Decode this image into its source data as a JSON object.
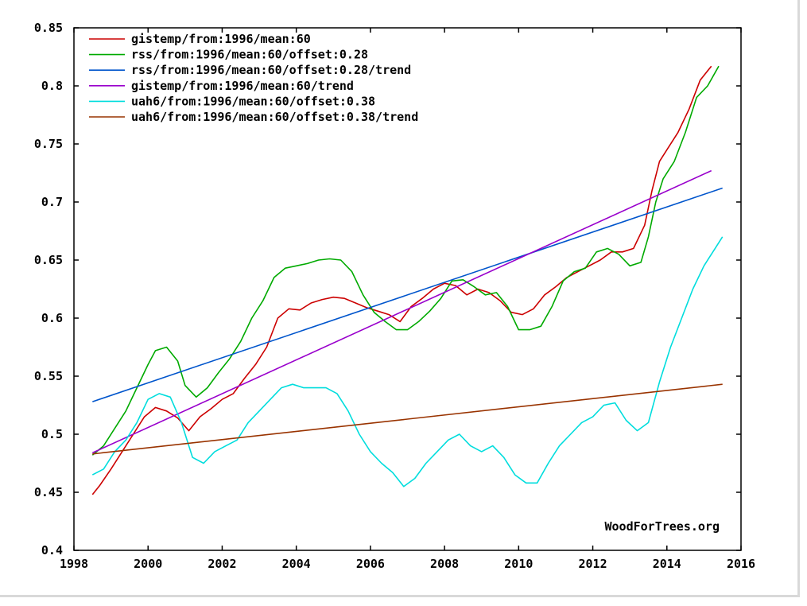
{
  "chart_data": {
    "type": "line",
    "title": "",
    "xlabel": "",
    "ylabel": "",
    "xlim": [
      1998,
      2016
    ],
    "ylim": [
      0.4,
      0.85
    ],
    "x_ticks": [
      "1998",
      "2000",
      "2002",
      "2004",
      "2006",
      "2008",
      "2010",
      "2012",
      "2014",
      "2016"
    ],
    "y_ticks": [
      "0.4",
      "0.45",
      "0.5",
      "0.55",
      "0.6",
      "0.65",
      "0.7",
      "0.75",
      "0.8",
      "0.85"
    ],
    "grid": false,
    "legend_position": "top-left",
    "watermark": "WoodForTrees.org",
    "series": [
      {
        "name": "gistemp/from:1996/mean:60",
        "color": "#cc0000",
        "x": [
          1998.5,
          1998.7,
          1999.0,
          1999.3,
          1999.6,
          1999.9,
          2000.2,
          2000.5,
          2000.8,
          2001.1,
          2001.4,
          2001.7,
          2002.0,
          2002.3,
          2002.6,
          2002.9,
          2003.2,
          2003.5,
          2003.8,
          2004.1,
          2004.4,
          2004.7,
          2005.0,
          2005.3,
          2005.6,
          2005.9,
          2006.2,
          2006.5,
          2006.8,
          2007.1,
          2007.4,
          2007.7,
          2008.0,
          2008.3,
          2008.6,
          2008.9,
          2009.2,
          2009.5,
          2009.8,
          2010.1,
          2010.4,
          2010.7,
          2011.0,
          2011.3,
          2011.6,
          2011.9,
          2012.2,
          2012.5,
          2012.8,
          2013.1,
          2013.4,
          2013.6,
          2013.8,
          2014.0,
          2014.3,
          2014.6,
          2014.9,
          2015.2
        ],
        "y": [
          0.448,
          0.456,
          0.47,
          0.485,
          0.5,
          0.515,
          0.523,
          0.52,
          0.514,
          0.503,
          0.515,
          0.522,
          0.53,
          0.535,
          0.548,
          0.56,
          0.575,
          0.6,
          0.608,
          0.607,
          0.613,
          0.616,
          0.618,
          0.617,
          0.613,
          0.609,
          0.606,
          0.603,
          0.597,
          0.61,
          0.617,
          0.625,
          0.63,
          0.628,
          0.62,
          0.625,
          0.622,
          0.615,
          0.605,
          0.603,
          0.608,
          0.62,
          0.627,
          0.635,
          0.64,
          0.645,
          0.65,
          0.657,
          0.657,
          0.66,
          0.68,
          0.71,
          0.735,
          0.745,
          0.76,
          0.78,
          0.805,
          0.817
        ]
      },
      {
        "name": "rss/from:1996/mean:60/offset:0.28",
        "color": "#00aa00",
        "x": [
          1998.5,
          1998.8,
          1999.1,
          1999.4,
          1999.7,
          2000.0,
          2000.2,
          2000.5,
          2000.8,
          2001.0,
          2001.3,
          2001.6,
          2001.9,
          2002.2,
          2002.5,
          2002.8,
          2003.1,
          2003.4,
          2003.7,
          2004.0,
          2004.3,
          2004.6,
          2004.9,
          2005.2,
          2005.5,
          2005.8,
          2006.1,
          2006.4,
          2006.7,
          2007.0,
          2007.3,
          2007.6,
          2007.9,
          2008.2,
          2008.5,
          2008.8,
          2009.1,
          2009.4,
          2009.7,
          2010.0,
          2010.3,
          2010.6,
          2010.9,
          2011.2,
          2011.5,
          2011.8,
          2012.1,
          2012.4,
          2012.7,
          2013.0,
          2013.3,
          2013.5,
          2013.7,
          2013.9,
          2014.2,
          2014.5,
          2014.8,
          2015.1,
          2015.4
        ],
        "y": [
          0.482,
          0.49,
          0.505,
          0.52,
          0.54,
          0.56,
          0.572,
          0.575,
          0.563,
          0.542,
          0.532,
          0.54,
          0.553,
          0.565,
          0.58,
          0.6,
          0.615,
          0.635,
          0.643,
          0.645,
          0.647,
          0.65,
          0.651,
          0.65,
          0.64,
          0.62,
          0.605,
          0.597,
          0.59,
          0.59,
          0.597,
          0.606,
          0.617,
          0.632,
          0.633,
          0.627,
          0.62,
          0.622,
          0.61,
          0.59,
          0.59,
          0.593,
          0.61,
          0.632,
          0.64,
          0.643,
          0.657,
          0.66,
          0.655,
          0.645,
          0.648,
          0.67,
          0.7,
          0.72,
          0.735,
          0.76,
          0.79,
          0.8,
          0.817
        ]
      },
      {
        "name": "rss/from:1996/mean:60/offset:0.28/trend",
        "color": "#0055cc",
        "x": [
          1998.5,
          2015.5
        ],
        "y": [
          0.528,
          0.712
        ]
      },
      {
        "name": "gistemp/from:1996/mean:60/trend",
        "color": "#9900cc",
        "x": [
          1998.5,
          2015.2
        ],
        "y": [
          0.484,
          0.727
        ]
      },
      {
        "name": "uah6/from:1996/mean:60/offset:0.38",
        "color": "#00dddd",
        "x": [
          1998.5,
          1998.8,
          1999.1,
          1999.4,
          1999.7,
          2000.0,
          2000.3,
          2000.6,
          2000.9,
          2001.2,
          2001.5,
          2001.8,
          2002.1,
          2002.4,
          2002.7,
          2003.0,
          2003.3,
          2003.6,
          2003.9,
          2004.2,
          2004.5,
          2004.8,
          2005.1,
          2005.4,
          2005.7,
          2006.0,
          2006.3,
          2006.6,
          2006.9,
          2007.2,
          2007.5,
          2007.8,
          2008.1,
          2008.4,
          2008.7,
          2009.0,
          2009.3,
          2009.6,
          2009.9,
          2010.2,
          2010.5,
          2010.8,
          2011.1,
          2011.4,
          2011.7,
          2012.0,
          2012.3,
          2012.6,
          2012.9,
          2013.2,
          2013.5,
          2013.8,
          2014.1,
          2014.4,
          2014.7,
          2015.0,
          2015.3,
          2015.5
        ],
        "y": [
          0.465,
          0.47,
          0.485,
          0.495,
          0.51,
          0.53,
          0.535,
          0.532,
          0.51,
          0.48,
          0.475,
          0.485,
          0.49,
          0.495,
          0.51,
          0.52,
          0.53,
          0.54,
          0.543,
          0.54,
          0.54,
          0.54,
          0.535,
          0.52,
          0.5,
          0.485,
          0.475,
          0.467,
          0.455,
          0.462,
          0.475,
          0.485,
          0.495,
          0.5,
          0.49,
          0.485,
          0.49,
          0.48,
          0.465,
          0.458,
          0.458,
          0.475,
          0.49,
          0.5,
          0.51,
          0.515,
          0.525,
          0.527,
          0.512,
          0.503,
          0.51,
          0.545,
          0.575,
          0.6,
          0.625,
          0.645,
          0.66,
          0.67
        ]
      },
      {
        "name": "uah6/from:1996/mean:60/offset:0.38/trend",
        "color": "#993300",
        "x": [
          1998.5,
          2015.5
        ],
        "y": [
          0.483,
          0.543
        ]
      }
    ]
  }
}
